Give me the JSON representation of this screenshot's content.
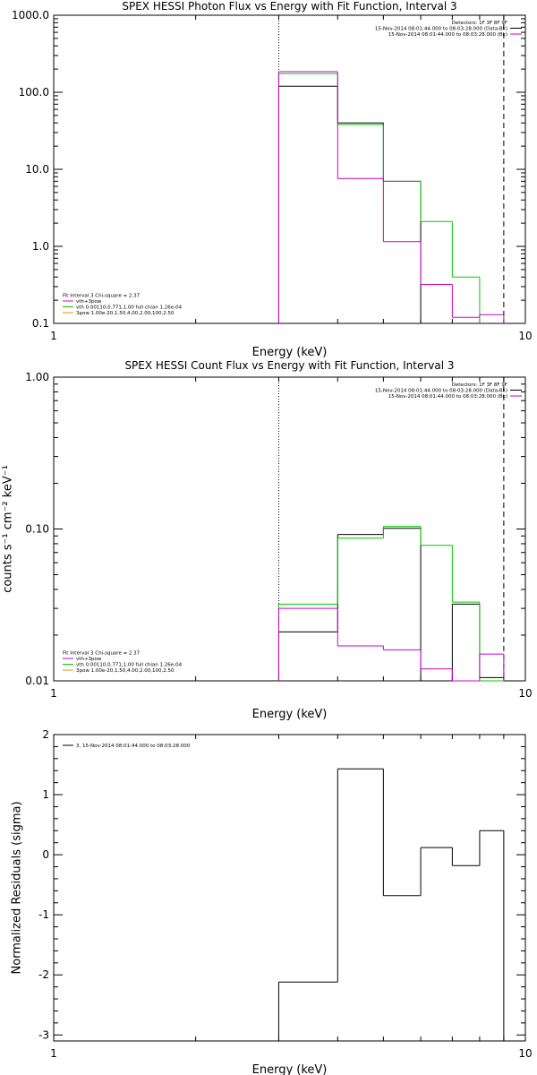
{
  "colors": {
    "data": "#000000",
    "model": "#00cc00",
    "background": "#cc00cc",
    "component_vth": "#cc00cc",
    "component_3pow": "#ff8800",
    "frame": "#000000"
  },
  "chart_data": [
    {
      "type": "line",
      "title": "SPEX HESSI Photon Flux vs Energy with Fit Function, Interval 3",
      "xlabel": "Energy (keV)",
      "ylabel": "",
      "xscale": "log",
      "yscale": "log",
      "xlim": [
        1,
        10
      ],
      "ylim": [
        0.1,
        1000
      ],
      "x_ticks": [
        "1",
        "10"
      ],
      "y_ticks": [
        "0.1",
        "1.0",
        "10.0",
        "100.0",
        "1000.0"
      ],
      "grid": false,
      "bin_edges": [
        3,
        4,
        5,
        6,
        7,
        8,
        9
      ],
      "vlines": [
        {
          "x": 3,
          "style": "dotted"
        },
        {
          "x": 9,
          "style": "dashed"
        }
      ],
      "series": [
        {
          "key": "data",
          "values": [
            120,
            40,
            7.0,
            null,
            null,
            null
          ]
        },
        {
          "key": "model",
          "values": [
            175,
            38,
            7.0,
            2.1,
            0.4,
            null
          ]
        },
        {
          "key": "background",
          "values": [
            185,
            7.6,
            1.15,
            0.32,
            0.12,
            0.13
          ]
        }
      ],
      "legend_right": {
        "placement": "top-right",
        "lines": [
          {
            "text": "Detectors: 1F 3F 8F 9F",
            "color": null
          },
          {
            "text": "15-Nov-2014 08:01:44.000 to 08:03:28.000 (Data-Bk)",
            "color": "#000000"
          },
          {
            "text": "15-Nov-2014 08:01:44.000 to 08:03:28.000 (Bk)",
            "color": "#cc00cc"
          }
        ]
      },
      "legend_left": {
        "placement": "bottom-left",
        "lines": [
          {
            "text": "Fit Interval 3   Chi-square = 2.37",
            "color": null
          },
          {
            "text": "vth+3pow",
            "color": "#cc00cc"
          },
          {
            "text": "vth 0.00110,0.771,1.00   full chian 1.26e-04",
            "color": "#00cc00"
          },
          {
            "text": "3pow 1.00e-20,1.50,4.00,2.00,100,2.50",
            "color": "#ff8800"
          }
        ]
      }
    },
    {
      "type": "line",
      "title": "SPEX HESSI Count Flux vs Energy with Fit Function, Interval 3",
      "xlabel": "Energy (keV)",
      "ylabel": "counts s⁻¹ cm⁻² keV⁻¹",
      "xscale": "log",
      "yscale": "log",
      "xlim": [
        1,
        10
      ],
      "ylim": [
        0.01,
        1.0
      ],
      "x_ticks": [
        "1",
        "10"
      ],
      "y_ticks": [
        "0.01",
        "0.10",
        "1.00"
      ],
      "grid": false,
      "bin_edges": [
        3,
        4,
        5,
        6,
        7,
        8,
        9
      ],
      "vlines": [
        {
          "x": 3,
          "style": "dotted"
        },
        {
          "x": 9,
          "style": "dashed"
        }
      ],
      "series": [
        {
          "key": "data",
          "values": [
            0.021,
            0.092,
            0.101,
            null,
            0.032,
            0.0105
          ]
        },
        {
          "key": "model",
          "values": [
            0.032,
            0.087,
            0.104,
            0.078,
            0.033,
            0.01
          ]
        },
        {
          "key": "background",
          "values": [
            0.03,
            0.017,
            0.016,
            0.012,
            0.01,
            0.015
          ]
        }
      ],
      "legend_right": {
        "placement": "top-right",
        "lines": [
          {
            "text": "Detectors: 1F 3F 8F 9F",
            "color": null
          },
          {
            "text": "15-Nov-2014 08:01:44.000 to 08:03:28.000 (Data-Bk)",
            "color": "#000000"
          },
          {
            "text": "15-Nov-2014 08:01:44.000 to 08:03:28.000 (Bk)",
            "color": "#cc00cc"
          }
        ]
      },
      "legend_left": {
        "placement": "bottom-left",
        "lines": [
          {
            "text": "Fit Interval 3   Chi-square = 2.37",
            "color": null
          },
          {
            "text": "vth+3pow",
            "color": "#cc00cc"
          },
          {
            "text": "vth 0.00110,0.771,1.00   full chian 1.26e-04",
            "color": "#00cc00"
          },
          {
            "text": "3pow 1.00e-20,1.50,4.00,2.00,100,2.50",
            "color": "#ff8800"
          }
        ]
      }
    },
    {
      "type": "line",
      "title": "",
      "xlabel": "Energy (keV)",
      "ylabel": "Normalized Residuals (sigma)",
      "xscale": "log",
      "yscale": "linear",
      "xlim": [
        1,
        10
      ],
      "ylim": [
        -3.1,
        2
      ],
      "x_ticks": [
        "1",
        "10"
      ],
      "y_ticks": [
        "-3",
        "-2",
        "-1",
        "0",
        "1",
        "2"
      ],
      "grid": false,
      "bin_edges": [
        3,
        4,
        5,
        6,
        7,
        8,
        9
      ],
      "series": [
        {
          "key": "data",
          "values": [
            -2.12,
            1.43,
            -0.68,
            0.12,
            -0.18,
            0.4
          ]
        }
      ],
      "legend_left": {
        "placement": "top-left",
        "lines": [
          {
            "text": "3, 15-Nov-2014 08:01:44.000 to 08:03:28.000",
            "color": "#000000"
          }
        ]
      }
    }
  ]
}
